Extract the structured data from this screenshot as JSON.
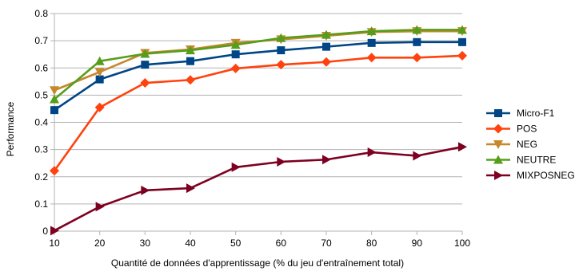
{
  "chart_data": {
    "type": "line",
    "x": [
      10,
      20,
      30,
      40,
      50,
      60,
      70,
      80,
      90,
      100
    ],
    "xlabel": "Quantité de données d'apprentissage (% du jeu d'entraînement total)",
    "ylabel": "Performance",
    "ylim": [
      0,
      0.8
    ],
    "yticks": [
      "0",
      "0.1",
      "0.2",
      "0.3",
      "0.4",
      "0.5",
      "0.6",
      "0.7",
      "0.8"
    ],
    "xticks": [
      "10",
      "20",
      "30",
      "40",
      "50",
      "60",
      "70",
      "80",
      "90",
      "100"
    ],
    "grid": "horizontal",
    "legend_position": "right",
    "series": [
      {
        "name": "Micro-F1",
        "color": "#004586",
        "marker": "square",
        "values": [
          0.445,
          0.558,
          0.612,
          0.625,
          0.65,
          0.665,
          0.678,
          0.692,
          0.695,
          0.695
        ]
      },
      {
        "name": "POS",
        "color": "#ff420e",
        "marker": "diamond",
        "values": [
          0.222,
          0.455,
          0.545,
          0.556,
          0.598,
          0.612,
          0.622,
          0.638,
          0.638,
          0.645
        ]
      },
      {
        "name": "NEG",
        "color": "#c5882c",
        "marker": "triangle-down",
        "values": [
          0.518,
          0.585,
          0.655,
          0.668,
          0.692,
          0.705,
          0.718,
          0.732,
          0.735,
          0.735
        ]
      },
      {
        "name": "NEUTRE",
        "color": "#579d1c",
        "marker": "triangle-up",
        "values": [
          0.485,
          0.625,
          0.652,
          0.665,
          0.685,
          0.71,
          0.722,
          0.735,
          0.74,
          0.74
        ]
      },
      {
        "name": "MIXPOSNEG",
        "color": "#7e0021",
        "marker": "triangle-right",
        "values": [
          0.002,
          0.09,
          0.15,
          0.158,
          0.235,
          0.255,
          0.263,
          0.29,
          0.277,
          0.31
        ]
      }
    ]
  }
}
